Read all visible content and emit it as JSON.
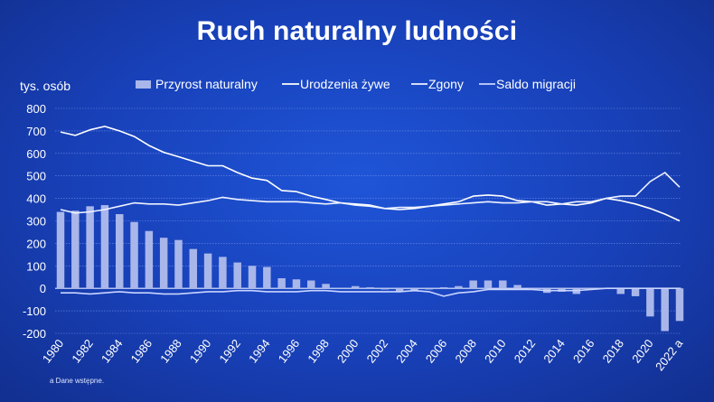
{
  "chart_data": {
    "type": "bar",
    "title": "Ruch naturalny ludności",
    "ylabel": "tys. osób",
    "ylim": [
      -200,
      800
    ],
    "yticks": [
      800,
      700,
      600,
      500,
      400,
      300,
      200,
      100,
      0,
      -100,
      -200
    ],
    "grid": true,
    "legend_position": "top",
    "footnote": "a Dane wstępne.",
    "x": [
      1980,
      1981,
      1982,
      1983,
      1984,
      1985,
      1986,
      1987,
      1988,
      1989,
      1990,
      1991,
      1992,
      1993,
      1994,
      1995,
      1996,
      1997,
      1998,
      1999,
      2000,
      2001,
      2002,
      2003,
      2004,
      2005,
      2006,
      2007,
      2008,
      2009,
      2010,
      2011,
      2012,
      2013,
      2014,
      2015,
      2016,
      2017,
      2018,
      2019,
      2020,
      2021,
      2022
    ],
    "xticklabels": [
      "1980",
      "1982",
      "1984",
      "1986",
      "1988",
      "1990",
      "1992",
      "1994",
      "1996",
      "1998",
      "2000",
      "2002",
      "2004",
      "2006",
      "2008",
      "2010",
      "2012",
      "2014",
      "2016",
      "2018",
      "2020",
      "2022 a"
    ],
    "series": [
      {
        "name": "Przyrost naturalny",
        "kind": "bar",
        "color": "#a8b6ea",
        "values": [
          340,
          345,
          365,
          370,
          330,
          295,
          255,
          225,
          215,
          175,
          155,
          140,
          115,
          100,
          95,
          45,
          40,
          35,
          20,
          0,
          10,
          5,
          -5,
          -15,
          -10,
          -5,
          5,
          10,
          35,
          35,
          35,
          15,
          0,
          -20,
          -15,
          -25,
          -5,
          0,
          -25,
          -35,
          -125,
          -190,
          -145
        ]
      },
      {
        "name": "Urodzenia żywe",
        "kind": "line",
        "color": "#ffffff",
        "values": [
          695,
          680,
          705,
          720,
          700,
          675,
          635,
          605,
          585,
          565,
          545,
          545,
          515,
          490,
          480,
          435,
          430,
          410,
          395,
          380,
          375,
          370,
          355,
          350,
          355,
          365,
          375,
          385,
          410,
          415,
          410,
          390,
          385,
          370,
          375,
          370,
          380,
          400,
          390,
          375,
          355,
          330,
          300
        ]
      },
      {
        "name": "Zgony",
        "kind": "line",
        "color": "#eef2ff",
        "values": [
          350,
          335,
          340,
          350,
          365,
          380,
          375,
          375,
          370,
          380,
          390,
          405,
          395,
          390,
          385,
          385,
          385,
          380,
          375,
          380,
          370,
          365,
          355,
          360,
          360,
          365,
          370,
          375,
          380,
          385,
          380,
          380,
          385,
          385,
          375,
          385,
          385,
          400,
          410,
          410,
          475,
          515,
          450
        ]
      },
      {
        "name": "Saldo migracji",
        "kind": "line",
        "color": "#c9d4ff",
        "values": [
          -20,
          -20,
          -25,
          -20,
          -15,
          -20,
          -20,
          -25,
          -25,
          -20,
          -15,
          -15,
          -10,
          -10,
          -15,
          -15,
          -15,
          -10,
          -10,
          -15,
          -15,
          -15,
          -15,
          -15,
          -10,
          -15,
          -35,
          -20,
          -15,
          -5,
          -5,
          -5,
          -5,
          -10,
          -10,
          -10,
          -5,
          0,
          0,
          0,
          0,
          0,
          0
        ]
      }
    ]
  }
}
